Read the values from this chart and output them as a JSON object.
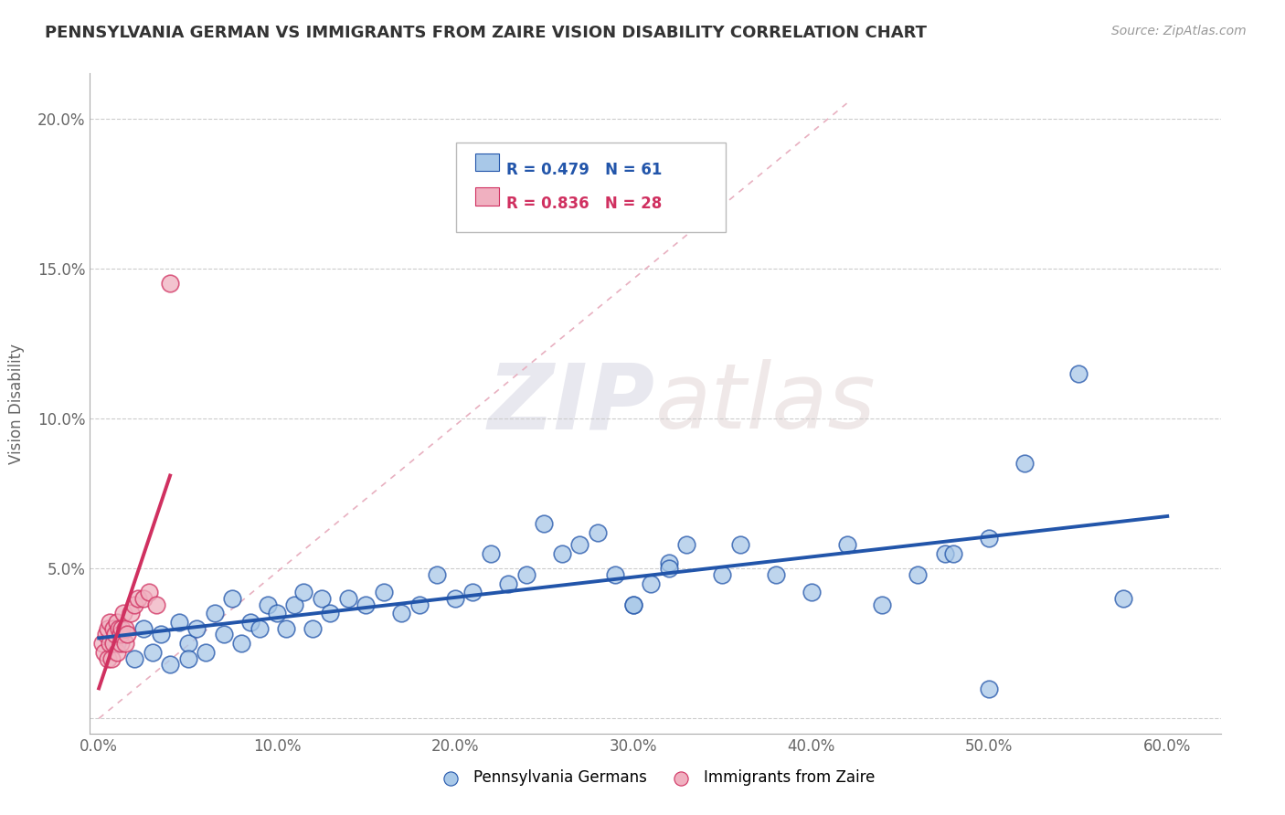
{
  "title": "PENNSYLVANIA GERMAN VS IMMIGRANTS FROM ZAIRE VISION DISABILITY CORRELATION CHART",
  "source_text": "Source: ZipAtlas.com",
  "ylabel": "Vision Disability",
  "x_ticks": [
    0.0,
    0.1,
    0.2,
    0.3,
    0.4,
    0.5,
    0.6
  ],
  "x_tick_labels": [
    "0.0%",
    "10.0%",
    "20.0%",
    "30.0%",
    "40.0%",
    "50.0%",
    "60.0%"
  ],
  "y_ticks": [
    0.0,
    0.05,
    0.1,
    0.15,
    0.2
  ],
  "y_tick_labels": [
    "",
    "5.0%",
    "10.0%",
    "15.0%",
    "20.0%"
  ],
  "xlim": [
    -0.005,
    0.63
  ],
  "ylim": [
    -0.005,
    0.215
  ],
  "blue_color": "#A8C8E8",
  "blue_line_color": "#2255AA",
  "pink_color": "#F0B0C0",
  "pink_line_color": "#D03060",
  "dashed_line_color": "#E8B0C0",
  "legend_R1": "R = 0.479",
  "legend_N1": "N = 61",
  "legend_R2": "R = 0.836",
  "legend_N2": "N = 28",
  "watermark_zip": "ZIP",
  "watermark_atlas": "atlas",
  "background_color": "#FFFFFF",
  "blue_scatter_x": [
    0.01,
    0.02,
    0.025,
    0.03,
    0.035,
    0.04,
    0.045,
    0.05,
    0.05,
    0.055,
    0.06,
    0.065,
    0.07,
    0.075,
    0.08,
    0.085,
    0.09,
    0.095,
    0.1,
    0.105,
    0.11,
    0.115,
    0.12,
    0.125,
    0.13,
    0.14,
    0.15,
    0.16,
    0.17,
    0.18,
    0.19,
    0.2,
    0.21,
    0.22,
    0.23,
    0.24,
    0.25,
    0.26,
    0.27,
    0.28,
    0.29,
    0.3,
    0.31,
    0.32,
    0.33,
    0.35,
    0.36,
    0.38,
    0.4,
    0.42,
    0.44,
    0.46,
    0.475,
    0.5,
    0.52,
    0.55,
    0.575,
    0.3,
    0.32,
    0.48,
    0.5
  ],
  "blue_scatter_y": [
    0.025,
    0.02,
    0.03,
    0.022,
    0.028,
    0.018,
    0.032,
    0.025,
    0.02,
    0.03,
    0.022,
    0.035,
    0.028,
    0.04,
    0.025,
    0.032,
    0.03,
    0.038,
    0.035,
    0.03,
    0.038,
    0.042,
    0.03,
    0.04,
    0.035,
    0.04,
    0.038,
    0.042,
    0.035,
    0.038,
    0.048,
    0.04,
    0.042,
    0.055,
    0.045,
    0.048,
    0.065,
    0.055,
    0.058,
    0.062,
    0.048,
    0.038,
    0.045,
    0.052,
    0.058,
    0.048,
    0.058,
    0.048,
    0.042,
    0.058,
    0.038,
    0.048,
    0.055,
    0.06,
    0.085,
    0.115,
    0.04,
    0.038,
    0.05,
    0.055,
    0.01
  ],
  "pink_scatter_x": [
    0.002,
    0.003,
    0.004,
    0.005,
    0.005,
    0.006,
    0.006,
    0.007,
    0.008,
    0.008,
    0.009,
    0.01,
    0.01,
    0.011,
    0.012,
    0.012,
    0.013,
    0.014,
    0.015,
    0.015,
    0.016,
    0.018,
    0.02,
    0.022,
    0.025,
    0.028,
    0.032,
    0.04
  ],
  "pink_scatter_y": [
    0.025,
    0.022,
    0.028,
    0.02,
    0.03,
    0.025,
    0.032,
    0.02,
    0.025,
    0.03,
    0.028,
    0.022,
    0.032,
    0.03,
    0.025,
    0.028,
    0.03,
    0.035,
    0.025,
    0.03,
    0.028,
    0.035,
    0.038,
    0.04,
    0.04,
    0.042,
    0.038,
    0.145
  ]
}
